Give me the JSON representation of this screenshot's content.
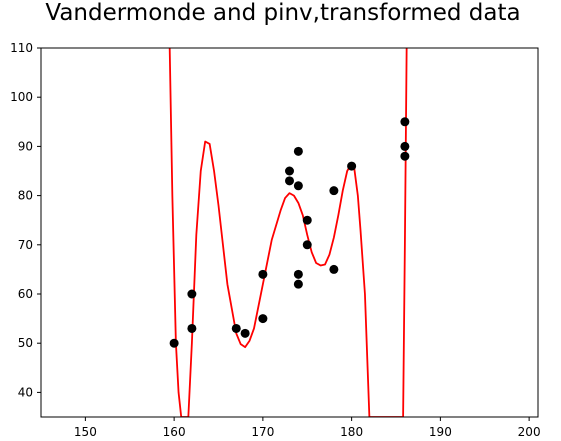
{
  "chart_data": {
    "type": "scatter",
    "title": "Vandermonde and pinv,transformed data",
    "xlabel": "",
    "ylabel": "",
    "xlim": [
      145,
      201
    ],
    "ylim": [
      35,
      110
    ],
    "x_ticks": [
      150,
      160,
      170,
      180,
      190,
      200
    ],
    "y_ticks": [
      40,
      50,
      60,
      70,
      80,
      90,
      100,
      110
    ],
    "grid": false,
    "series": [
      {
        "kind": "points",
        "color": "#000000",
        "points": [
          [
            160,
            50
          ],
          [
            162,
            60
          ],
          [
            162,
            53
          ],
          [
            167,
            53
          ],
          [
            168,
            52
          ],
          [
            170,
            64
          ],
          [
            170,
            55
          ],
          [
            173,
            85
          ],
          [
            173,
            83
          ],
          [
            174,
            89
          ],
          [
            174,
            82
          ],
          [
            174,
            64
          ],
          [
            174,
            62
          ],
          [
            175,
            75
          ],
          [
            175,
            70
          ],
          [
            178,
            81
          ],
          [
            178,
            65
          ],
          [
            180,
            86
          ],
          [
            186,
            95
          ],
          [
            186,
            90
          ],
          [
            186,
            88
          ]
        ]
      },
      {
        "kind": "line",
        "color": "#ff0000",
        "points": [
          [
            159.5,
            110
          ],
          [
            159.8,
            80
          ],
          [
            160.2,
            50
          ],
          [
            160.5,
            40
          ],
          [
            160.8,
            35
          ],
          [
            161.6,
            35
          ],
          [
            162,
            50
          ],
          [
            162.5,
            72
          ],
          [
            163,
            85
          ],
          [
            163.5,
            91
          ],
          [
            164,
            90.5
          ],
          [
            164.5,
            85
          ],
          [
            165,
            78
          ],
          [
            166,
            62
          ],
          [
            167,
            52
          ],
          [
            167.5,
            49.8
          ],
          [
            168,
            49.2
          ],
          [
            168.5,
            50.5
          ],
          [
            169,
            53
          ],
          [
            170,
            62
          ],
          [
            171,
            71
          ],
          [
            172,
            77
          ],
          [
            172.5,
            79.5
          ],
          [
            173,
            80.5
          ],
          [
            173.5,
            80
          ],
          [
            174,
            78.5
          ],
          [
            174.5,
            76
          ],
          [
            175,
            72
          ],
          [
            175.5,
            68.5
          ],
          [
            176,
            66.3
          ],
          [
            176.5,
            65.8
          ],
          [
            177,
            66
          ],
          [
            177.5,
            68
          ],
          [
            178,
            71.5
          ],
          [
            178.5,
            76
          ],
          [
            179,
            81
          ],
          [
            179.5,
            85
          ],
          [
            180,
            86.5
          ],
          [
            180.3,
            85.5
          ],
          [
            180.7,
            80
          ],
          [
            181,
            73
          ],
          [
            181.5,
            60
          ],
          [
            181.8,
            45
          ],
          [
            182,
            35
          ],
          [
            185.8,
            35
          ],
          [
            186,
            70
          ],
          [
            186.2,
            110
          ]
        ]
      }
    ]
  }
}
